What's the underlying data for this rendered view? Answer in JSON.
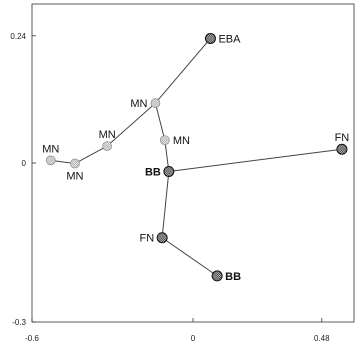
{
  "chart_data": {
    "type": "scatter",
    "title": "",
    "xlabel": "",
    "ylabel": "",
    "xlim": [
      -0.6,
      0.6
    ],
    "ylim": [
      -0.3,
      0.3
    ],
    "x_ticks": [
      {
        "value": -0.6,
        "label": "-0.6"
      },
      {
        "value": 0,
        "label": "0"
      },
      {
        "value": 0.48,
        "label": "0.48"
      }
    ],
    "y_ticks": [
      {
        "value": 0.24,
        "label": "0.24"
      },
      {
        "value": 0,
        "label": "0"
      },
      {
        "value": -0.3,
        "label": "-0.3"
      }
    ],
    "grid": false,
    "points": [
      {
        "id": "eba",
        "label": "EBA",
        "x": 0.065,
        "y": 0.235,
        "style": "dark",
        "label_side": "right",
        "bold": false
      },
      {
        "id": "mn1",
        "label": "MN",
        "x": -0.14,
        "y": 0.113,
        "style": "light",
        "label_side": "left",
        "bold": false
      },
      {
        "id": "mn2",
        "label": "MN",
        "x": -0.105,
        "y": 0.043,
        "style": "light",
        "label_side": "right",
        "bold": false
      },
      {
        "id": "mn3",
        "label": "MN",
        "x": -0.32,
        "y": 0.032,
        "style": "light",
        "label_side": "above",
        "bold": false
      },
      {
        "id": "mn4",
        "label": "MN",
        "x": -0.53,
        "y": 0.005,
        "style": "light",
        "label_side": "above",
        "bold": false
      },
      {
        "id": "mn5",
        "label": "MN",
        "x": -0.44,
        "y": -0.001,
        "style": "light",
        "label_side": "below",
        "bold": false
      },
      {
        "id": "bb1",
        "label": "BB",
        "x": -0.09,
        "y": -0.016,
        "style": "dark",
        "label_side": "left",
        "bold": true
      },
      {
        "id": "fn1",
        "label": "FN",
        "x": 0.555,
        "y": 0.026,
        "style": "dark",
        "label_side": "above",
        "bold": false
      },
      {
        "id": "fn2",
        "label": "FN",
        "x": -0.115,
        "y": -0.141,
        "style": "dark",
        "label_side": "left",
        "bold": false
      },
      {
        "id": "bb2",
        "label": "BB",
        "x": 0.09,
        "y": -0.213,
        "style": "dark",
        "label_side": "right",
        "bold": true
      }
    ],
    "edges": [
      [
        "eba",
        "mn1"
      ],
      [
        "mn1",
        "mn2"
      ],
      [
        "mn1",
        "mn3"
      ],
      [
        "mn3",
        "mn5"
      ],
      [
        "mn5",
        "mn4"
      ],
      [
        "mn2",
        "bb1"
      ],
      [
        "bb1",
        "fn1"
      ],
      [
        "bb1",
        "fn2"
      ],
      [
        "fn2",
        "bb2"
      ]
    ]
  }
}
